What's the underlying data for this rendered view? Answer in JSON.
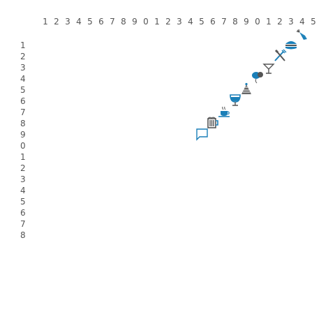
{
  "grid": {
    "column_labels": [
      "1",
      "2",
      "3",
      "4",
      "5",
      "6",
      "7",
      "8",
      "9",
      "0",
      "1",
      "2",
      "3",
      "4",
      "5",
      "6",
      "7",
      "8",
      "9",
      "0",
      "1",
      "2",
      "3",
      "4",
      "5"
    ],
    "row_labels": [
      "1",
      "2",
      "3",
      "4",
      "5",
      "6",
      "7",
      "8",
      "9",
      "0",
      "1",
      "2",
      "3",
      "4",
      "5",
      "6",
      "7",
      "8"
    ]
  },
  "icons": [
    {
      "name": "carrot-icon",
      "color": "#1a7fb8"
    },
    {
      "name": "hamburger-icon",
      "color": "#1a7fb8"
    },
    {
      "name": "fork-knife-icon",
      "color": "#1a7fb8"
    },
    {
      "name": "martini-glass-icon",
      "color": "#555555"
    },
    {
      "name": "balloons-icon",
      "color": "#1a7fb8"
    },
    {
      "name": "party-hat-icon",
      "color": "#555555"
    },
    {
      "name": "wine-glass-icon",
      "color": "#1a7fb8"
    },
    {
      "name": "coffee-cup-icon",
      "color": "#1a7fb8"
    },
    {
      "name": "beer-mug-icon",
      "color": "#555555"
    },
    {
      "name": "chat-bubble-icon",
      "color": "#1a7fb8"
    }
  ]
}
